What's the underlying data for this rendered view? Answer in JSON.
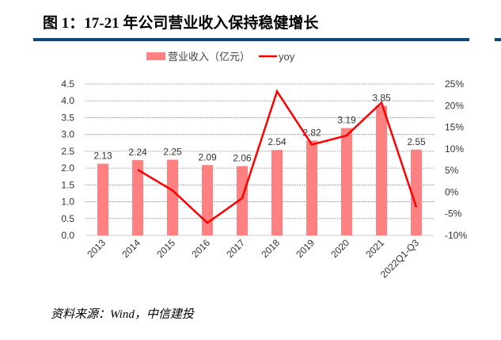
{
  "title": "图 1：17-21 年公司营业收入保持稳健增长",
  "source": "资料来源：Wind，中信建投",
  "chart_data": {
    "type": "bar+line",
    "categories": [
      "2013",
      "2014",
      "2015",
      "2016",
      "2017",
      "2018",
      "2019",
      "2020",
      "2021",
      "2022Q1-Q3"
    ],
    "series": [
      {
        "name": "营业收入（亿元）",
        "type": "bar",
        "axis": "left",
        "color": "#ff8080",
        "values": [
          2.13,
          2.24,
          2.25,
          2.09,
          2.06,
          2.54,
          2.82,
          3.19,
          3.85,
          2.55
        ],
        "labels": [
          "2.13",
          "2.24",
          "2.25",
          "2.09",
          "2.06",
          "2.54",
          "2.82",
          "3.19",
          "3.85",
          "2.55"
        ]
      },
      {
        "name": "yoy",
        "type": "line",
        "axis": "right",
        "color": "#ff0000",
        "values": [
          null,
          5.2,
          0.4,
          -7.1,
          -1.4,
          23.3,
          11.0,
          13.1,
          20.7,
          -3.5
        ]
      }
    ],
    "ylim_left": [
      0,
      4.5
    ],
    "yticks_left": [
      "0.0",
      "0.5",
      "1.0",
      "1.5",
      "2.0",
      "2.5",
      "3.0",
      "3.5",
      "4.0",
      "4.5"
    ],
    "ylim_right": [
      -10,
      25
    ],
    "yticks_right": [
      "-10%",
      "-5%",
      "0%",
      "5%",
      "10%",
      "15%",
      "20%",
      "25%"
    ],
    "grid": true,
    "legend": "top"
  }
}
